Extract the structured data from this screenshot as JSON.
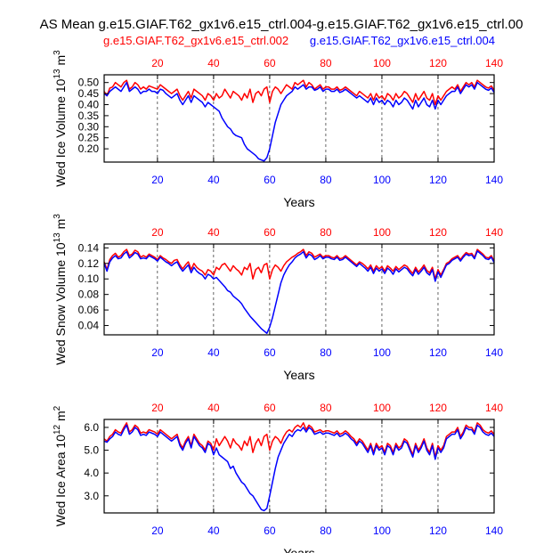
{
  "title": "AS Mean g.e15.GIAF.T62_gx1v6.e15_ctrl.004-g.e15.GIAF.T62_gx1v6.e15_ctrl.00",
  "legend": {
    "red_label": "g.e15.GIAF.T62_gx1v6.e15_ctrl.002",
    "blue_label": "g.e15.GIAF.T62_gx1v6.e15_ctrl.004"
  },
  "colors": {
    "red": "#ff0000",
    "blue": "#0000ff",
    "axis": "#000000"
  },
  "chart_data": [
    {
      "type": "line",
      "title": "",
      "xlabel": "Years",
      "ylabel": "Wed Ice Volume 10",
      "ylabel_exp": "13",
      "ylabel_unit": " m",
      "ylabel_unit_exp": "3",
      "xlim": [
        1,
        140
      ],
      "ylim": [
        0.14,
        0.535
      ],
      "x_ticks": [
        20,
        40,
        60,
        80,
        100,
        120,
        140
      ],
      "y_ticks": [
        "0.20",
        "0.25",
        "0.30",
        "0.35",
        "0.40",
        "0.45",
        "0.50"
      ],
      "grid": "vertical dashed at x ticks",
      "series": [
        {
          "name": "g.e15.GIAF.T62_gx1v6.e15_ctrl.002",
          "color": "red",
          "values": [
            0.46,
            0.44,
            0.475,
            0.48,
            0.5,
            0.49,
            0.48,
            0.5,
            0.51,
            0.47,
            0.48,
            0.5,
            0.49,
            0.47,
            0.48,
            0.47,
            0.485,
            0.48,
            0.475,
            0.47,
            0.49,
            0.48,
            0.47,
            0.46,
            0.45,
            0.46,
            0.47,
            0.44,
            0.42,
            0.44,
            0.46,
            0.43,
            0.47,
            0.46,
            0.45,
            0.44,
            0.42,
            0.45,
            0.44,
            0.42,
            0.45,
            0.43,
            0.44,
            0.47,
            0.45,
            0.43,
            0.46,
            0.45,
            0.44,
            0.42,
            0.45,
            0.43,
            0.47,
            0.41,
            0.45,
            0.46,
            0.44,
            0.47,
            0.48,
            0.41,
            0.46,
            0.48,
            0.47,
            0.45,
            0.47,
            0.49,
            0.48,
            0.47,
            0.5,
            0.49,
            0.5,
            0.51,
            0.48,
            0.5,
            0.49,
            0.47,
            0.48,
            0.49,
            0.47,
            0.48,
            0.48,
            0.47,
            0.47,
            0.48,
            0.465,
            0.47,
            0.48,
            0.47,
            0.46,
            0.45,
            0.44,
            0.46,
            0.45,
            0.44,
            0.43,
            0.45,
            0.42,
            0.45,
            0.43,
            0.44,
            0.42,
            0.45,
            0.44,
            0.42,
            0.45,
            0.43,
            0.44,
            0.46,
            0.45,
            0.43,
            0.41,
            0.45,
            0.42,
            0.44,
            0.46,
            0.43,
            0.42,
            0.45,
            0.4,
            0.44,
            0.42,
            0.44,
            0.46,
            0.47,
            0.48,
            0.47,
            0.49,
            0.46,
            0.48,
            0.5,
            0.49,
            0.5,
            0.48,
            0.51,
            0.5,
            0.49,
            0.48,
            0.475,
            0.485,
            0.465
          ]
        },
        {
          "name": "g.e15.GIAF.T62_gx1v6.e15_ctrl.004",
          "color": "blue",
          "values": [
            0.45,
            0.44,
            0.46,
            0.47,
            0.48,
            0.47,
            0.46,
            0.48,
            0.5,
            0.46,
            0.47,
            0.48,
            0.47,
            0.45,
            0.46,
            0.46,
            0.47,
            0.46,
            0.46,
            0.45,
            0.47,
            0.465,
            0.45,
            0.44,
            0.43,
            0.44,
            0.45,
            0.42,
            0.4,
            0.42,
            0.44,
            0.41,
            0.44,
            0.43,
            0.42,
            0.41,
            0.39,
            0.41,
            0.4,
            0.39,
            0.38,
            0.37,
            0.34,
            0.32,
            0.3,
            0.29,
            0.27,
            0.26,
            0.255,
            0.25,
            0.22,
            0.2,
            0.19,
            0.18,
            0.17,
            0.155,
            0.15,
            0.145,
            0.16,
            0.2,
            0.26,
            0.32,
            0.36,
            0.4,
            0.42,
            0.44,
            0.45,
            0.46,
            0.48,
            0.47,
            0.48,
            0.49,
            0.47,
            0.48,
            0.48,
            0.465,
            0.47,
            0.48,
            0.46,
            0.47,
            0.47,
            0.46,
            0.46,
            0.47,
            0.455,
            0.46,
            0.47,
            0.46,
            0.45,
            0.44,
            0.43,
            0.44,
            0.43,
            0.42,
            0.41,
            0.43,
            0.4,
            0.43,
            0.41,
            0.42,
            0.4,
            0.42,
            0.41,
            0.39,
            0.42,
            0.4,
            0.41,
            0.43,
            0.42,
            0.4,
            0.38,
            0.42,
            0.39,
            0.41,
            0.43,
            0.4,
            0.39,
            0.42,
            0.38,
            0.42,
            0.4,
            0.42,
            0.44,
            0.45,
            0.46,
            0.46,
            0.48,
            0.45,
            0.47,
            0.49,
            0.48,
            0.49,
            0.47,
            0.5,
            0.49,
            0.48,
            0.47,
            0.465,
            0.475,
            0.455
          ]
        }
      ]
    },
    {
      "type": "line",
      "title": "",
      "xlabel": "Years",
      "ylabel": "Wed Snow Volume 10",
      "ylabel_exp": "13",
      "ylabel_unit": " m",
      "ylabel_unit_exp": "3",
      "xlim": [
        1,
        140
      ],
      "ylim": [
        0.028,
        0.145
      ],
      "x_ticks": [
        20,
        40,
        60,
        80,
        100,
        120,
        140
      ],
      "y_ticks": [
        "0.04",
        "0.06",
        "0.08",
        "0.10",
        "0.12",
        "0.14"
      ],
      "grid": "vertical dashed at x ticks",
      "series": [
        {
          "name": "g.e15.GIAF.T62_gx1v6.e15_ctrl.002",
          "color": "red",
          "values": [
            0.122,
            0.112,
            0.125,
            0.13,
            0.133,
            0.128,
            0.13,
            0.135,
            0.138,
            0.13,
            0.132,
            0.137,
            0.135,
            0.128,
            0.13,
            0.128,
            0.132,
            0.13,
            0.128,
            0.125,
            0.13,
            0.127,
            0.125,
            0.122,
            0.12,
            0.124,
            0.125,
            0.118,
            0.113,
            0.118,
            0.122,
            0.112,
            0.12,
            0.115,
            0.112,
            0.11,
            0.105,
            0.112,
            0.11,
            0.105,
            0.115,
            0.112,
            0.118,
            0.12,
            0.115,
            0.11,
            0.117,
            0.113,
            0.11,
            0.105,
            0.115,
            0.112,
            0.12,
            0.1,
            0.112,
            0.115,
            0.108,
            0.118,
            0.12,
            0.1,
            0.112,
            0.118,
            0.115,
            0.11,
            0.117,
            0.122,
            0.125,
            0.128,
            0.13,
            0.133,
            0.135,
            0.138,
            0.13,
            0.135,
            0.133,
            0.128,
            0.13,
            0.132,
            0.128,
            0.13,
            0.13,
            0.128,
            0.127,
            0.13,
            0.126,
            0.127,
            0.13,
            0.127,
            0.124,
            0.121,
            0.118,
            0.122,
            0.12,
            0.117,
            0.113,
            0.118,
            0.11,
            0.117,
            0.113,
            0.116,
            0.11,
            0.117,
            0.114,
            0.11,
            0.116,
            0.112,
            0.115,
            0.118,
            0.116,
            0.111,
            0.107,
            0.115,
            0.109,
            0.113,
            0.118,
            0.111,
            0.108,
            0.115,
            0.1,
            0.112,
            0.105,
            0.112,
            0.12,
            0.122,
            0.126,
            0.128,
            0.13,
            0.125,
            0.13,
            0.134,
            0.132,
            0.133,
            0.128,
            0.138,
            0.135,
            0.132,
            0.128,
            0.127,
            0.13,
            0.123
          ]
        },
        {
          "name": "g.e15.GIAF.T62_gx1v6.e15_ctrl.004",
          "color": "blue",
          "values": [
            0.12,
            0.11,
            0.122,
            0.127,
            0.13,
            0.126,
            0.127,
            0.132,
            0.135,
            0.127,
            0.13,
            0.134,
            0.132,
            0.126,
            0.127,
            0.126,
            0.13,
            0.128,
            0.126,
            0.123,
            0.128,
            0.125,
            0.122,
            0.12,
            0.117,
            0.12,
            0.122,
            0.115,
            0.11,
            0.114,
            0.118,
            0.108,
            0.115,
            0.11,
            0.107,
            0.105,
            0.1,
            0.106,
            0.104,
            0.1,
            0.102,
            0.098,
            0.094,
            0.09,
            0.085,
            0.083,
            0.078,
            0.075,
            0.072,
            0.068,
            0.062,
            0.057,
            0.052,
            0.048,
            0.044,
            0.04,
            0.036,
            0.033,
            0.03,
            0.038,
            0.05,
            0.065,
            0.08,
            0.095,
            0.105,
            0.112,
            0.118,
            0.122,
            0.127,
            0.13,
            0.132,
            0.135,
            0.127,
            0.132,
            0.13,
            0.125,
            0.127,
            0.13,
            0.126,
            0.128,
            0.128,
            0.126,
            0.125,
            0.128,
            0.124,
            0.125,
            0.128,
            0.125,
            0.122,
            0.119,
            0.116,
            0.12,
            0.117,
            0.114,
            0.11,
            0.115,
            0.107,
            0.114,
            0.11,
            0.113,
            0.107,
            0.114,
            0.111,
            0.106,
            0.113,
            0.109,
            0.112,
            0.115,
            0.113,
            0.108,
            0.104,
            0.112,
            0.106,
            0.11,
            0.115,
            0.108,
            0.105,
            0.112,
            0.097,
            0.109,
            0.102,
            0.11,
            0.118,
            0.12,
            0.124,
            0.126,
            0.128,
            0.123,
            0.128,
            0.132,
            0.13,
            0.131,
            0.126,
            0.136,
            0.133,
            0.13,
            0.126,
            0.125,
            0.128,
            0.121
          ]
        }
      ]
    },
    {
      "type": "line",
      "title": "",
      "xlabel": "Years",
      "ylabel": "Wed Ice Area 10",
      "ylabel_exp": "12",
      "ylabel_unit": " m",
      "ylabel_unit_exp": "2",
      "xlim": [
        1,
        140
      ],
      "ylim": [
        2.25,
        6.35
      ],
      "x_ticks": [
        20,
        40,
        60,
        80,
        100,
        120,
        140
      ],
      "y_ticks": [
        "3.0",
        "4.0",
        "5.0",
        "6.0"
      ],
      "grid": "vertical dashed at x ticks",
      "series": [
        {
          "name": "g.e15.GIAF.T62_gx1v6.e15_ctrl.002",
          "color": "red",
          "values": [
            5.5,
            5.4,
            5.6,
            5.7,
            5.9,
            5.8,
            5.75,
            6.0,
            6.2,
            5.8,
            5.9,
            6.1,
            6.0,
            5.75,
            5.8,
            5.75,
            5.9,
            5.85,
            5.8,
            5.7,
            5.9,
            5.8,
            5.7,
            5.6,
            5.5,
            5.6,
            5.7,
            5.3,
            5.1,
            5.4,
            5.6,
            5.2,
            5.7,
            5.5,
            5.3,
            5.2,
            5.0,
            5.4,
            5.3,
            5.0,
            5.5,
            5.2,
            5.4,
            5.6,
            5.4,
            5.1,
            5.5,
            5.3,
            5.2,
            5.0,
            5.4,
            5.2,
            5.6,
            4.9,
            5.3,
            5.5,
            5.2,
            5.6,
            5.7,
            5.0,
            5.4,
            5.6,
            5.5,
            5.3,
            5.6,
            5.8,
            5.9,
            5.8,
            6.0,
            6.1,
            6.0,
            6.2,
            5.9,
            6.1,
            6.0,
            5.8,
            5.85,
            5.9,
            5.8,
            5.85,
            5.85,
            5.8,
            5.75,
            5.85,
            5.7,
            5.75,
            5.85,
            5.75,
            5.6,
            5.5,
            5.3,
            5.5,
            5.4,
            5.2,
            5.0,
            5.3,
            4.9,
            5.3,
            5.1,
            5.2,
            4.9,
            5.3,
            5.2,
            4.9,
            5.3,
            5.1,
            5.2,
            5.5,
            5.4,
            5.1,
            4.8,
            5.3,
            5.0,
            5.2,
            5.5,
            5.1,
            4.9,
            5.3,
            4.7,
            5.2,
            5.0,
            5.2,
            5.6,
            5.7,
            5.8,
            5.8,
            6.0,
            5.6,
            5.8,
            6.1,
            6.0,
            6.0,
            5.8,
            6.2,
            6.1,
            5.9,
            5.8,
            5.75,
            5.85,
            5.7
          ]
        },
        {
          "name": "g.e15.GIAF.T62_gx1v6.e15_ctrl.004",
          "color": "blue",
          "values": [
            5.4,
            5.35,
            5.5,
            5.6,
            5.8,
            5.7,
            5.65,
            5.9,
            6.1,
            5.7,
            5.8,
            6.0,
            5.9,
            5.65,
            5.7,
            5.65,
            5.8,
            5.75,
            5.7,
            5.6,
            5.8,
            5.7,
            5.6,
            5.5,
            5.4,
            5.5,
            5.6,
            5.2,
            5.0,
            5.3,
            5.5,
            5.1,
            5.6,
            5.4,
            5.2,
            5.1,
            4.9,
            5.3,
            5.2,
            4.8,
            5.1,
            4.8,
            4.7,
            4.6,
            4.5,
            4.2,
            4.3,
            4.0,
            3.8,
            3.6,
            3.5,
            3.3,
            3.1,
            3.0,
            2.8,
            2.6,
            2.4,
            2.35,
            2.45,
            3.0,
            3.6,
            4.2,
            4.7,
            5.0,
            5.3,
            5.5,
            5.7,
            5.6,
            5.8,
            5.9,
            5.85,
            6.0,
            5.8,
            6.0,
            5.9,
            5.7,
            5.75,
            5.8,
            5.7,
            5.75,
            5.75,
            5.7,
            5.65,
            5.75,
            5.6,
            5.65,
            5.75,
            5.65,
            5.5,
            5.4,
            5.2,
            5.4,
            5.3,
            5.1,
            4.9,
            5.2,
            4.8,
            5.2,
            5.0,
            5.1,
            4.8,
            5.2,
            5.1,
            4.8,
            5.2,
            5.0,
            5.1,
            5.4,
            5.3,
            5.0,
            4.7,
            5.2,
            4.9,
            5.1,
            5.4,
            5.0,
            4.8,
            5.2,
            4.6,
            5.1,
            4.9,
            5.1,
            5.5,
            5.6,
            5.7,
            5.7,
            5.9,
            5.5,
            5.7,
            6.0,
            5.9,
            5.9,
            5.7,
            6.1,
            6.0,
            5.8,
            5.7,
            5.65,
            5.75,
            5.6
          ]
        }
      ]
    }
  ]
}
